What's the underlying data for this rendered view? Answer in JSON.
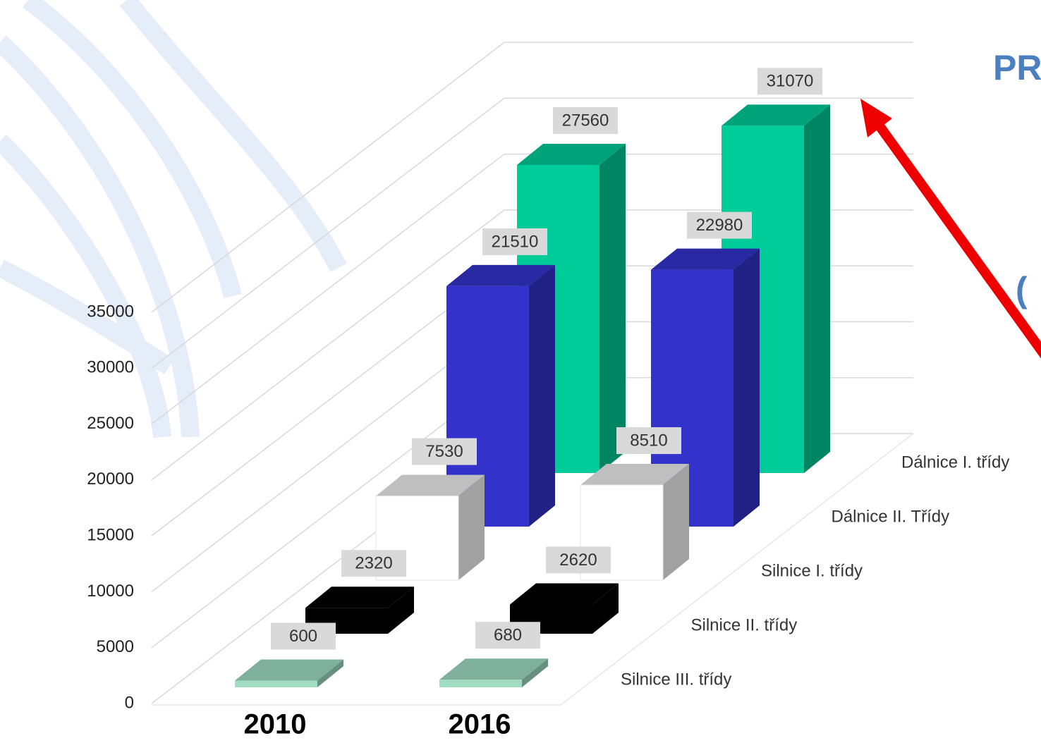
{
  "chart_data": {
    "type": "bar3d",
    "categories": [
      "2010",
      "2016"
    ],
    "series": [
      {
        "name": "Silnice III. třídy",
        "color": "#9fdcc2",
        "values": [
          600,
          680
        ]
      },
      {
        "name": "Silnice II. třídy",
        "color": "#000000",
        "values": [
          2320,
          2620
        ]
      },
      {
        "name": "Silnice I. třídy",
        "color": "#ffffff",
        "values": [
          7530,
          8510
        ]
      },
      {
        "name": "Dálnice II. Třídy",
        "color": "#3333cc",
        "values": [
          21510,
          22980
        ]
      },
      {
        "name": "Dálnice I. třídy",
        "color": "#00cc99",
        "values": [
          27560,
          31070
        ]
      }
    ],
    "ylim": [
      0,
      35000
    ],
    "yticks": [
      0,
      5000,
      10000,
      15000,
      20000,
      25000,
      30000,
      35000
    ],
    "grid": true,
    "annotations": [
      "PR",
      "("
    ]
  }
}
